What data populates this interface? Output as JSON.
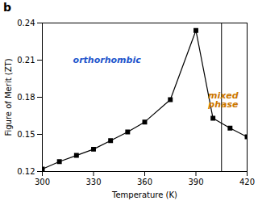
{
  "chart_data": {
    "type": "line",
    "title": "b",
    "x_label": "Temperature (K)",
    "y_label": "Figure of Merit (ZT)",
    "x": [
      300,
      310,
      320,
      330,
      340,
      350,
      360,
      375,
      390,
      400,
      410,
      420
    ],
    "values": [
      0.122,
      0.128,
      0.133,
      0.138,
      0.145,
      0.152,
      0.16,
      0.178,
      0.234,
      0.163,
      0.155,
      0.148
    ],
    "color": "#000000",
    "marker": "square",
    "xlim": [
      300,
      420
    ],
    "ylim": [
      0.12,
      0.24
    ],
    "xticks": [
      300,
      330,
      360,
      390,
      420
    ],
    "yticks": [
      0.12,
      0.15,
      0.18,
      0.21,
      0.24
    ],
    "grid": false,
    "vline": {
      "x": 405,
      "color": "#000000"
    },
    "annotations": [
      {
        "text": "orthorhombic",
        "x": 318,
        "y": 0.208,
        "color": "#2255cc",
        "align": "start"
      },
      {
        "text": "mixed\nphase",
        "x": 406,
        "y": 0.172,
        "color": "#cc7700",
        "align": "middle"
      }
    ]
  }
}
